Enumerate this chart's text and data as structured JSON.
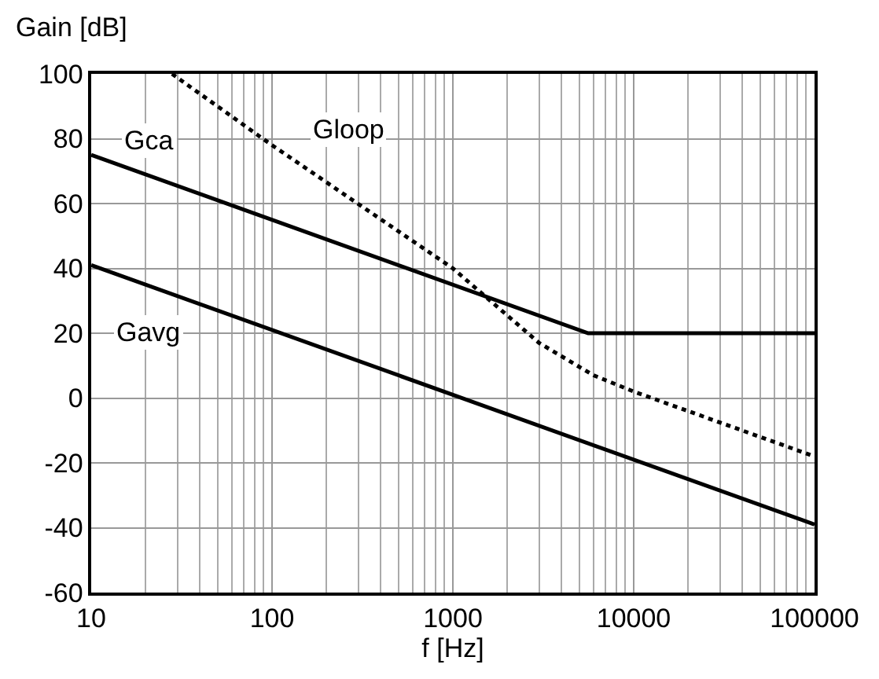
{
  "chart_data": {
    "type": "line",
    "xlabel": "f [Hz]",
    "ylabel": "Gain [dB]",
    "log": "x",
    "grid": true,
    "legend": false,
    "xlim": [
      10,
      100000
    ],
    "xticks": [
      10,
      100,
      1000,
      10000,
      100000
    ],
    "ylim": [
      -60,
      100
    ],
    "yticks": [
      -60,
      -40,
      -20,
      0,
      20,
      40,
      60,
      80,
      100
    ],
    "series": [
      {
        "name": "Gca",
        "color": "#000000",
        "line_style": "solid",
        "x": [
          10,
          5600,
          100000
        ],
        "values": [
          75,
          20,
          20
        ]
      },
      {
        "name": "Gloop",
        "color": "#000000",
        "line_style": "dotted",
        "x": [
          28,
          100,
          1000,
          3000,
          6000,
          10000,
          100000
        ],
        "values": [
          100,
          78,
          40,
          17,
          7,
          2,
          -18
        ]
      },
      {
        "name": "Gavg",
        "color": "#000000",
        "line_style": "solid",
        "x": [
          10,
          100000
        ],
        "values": [
          41,
          -39
        ]
      }
    ]
  }
}
